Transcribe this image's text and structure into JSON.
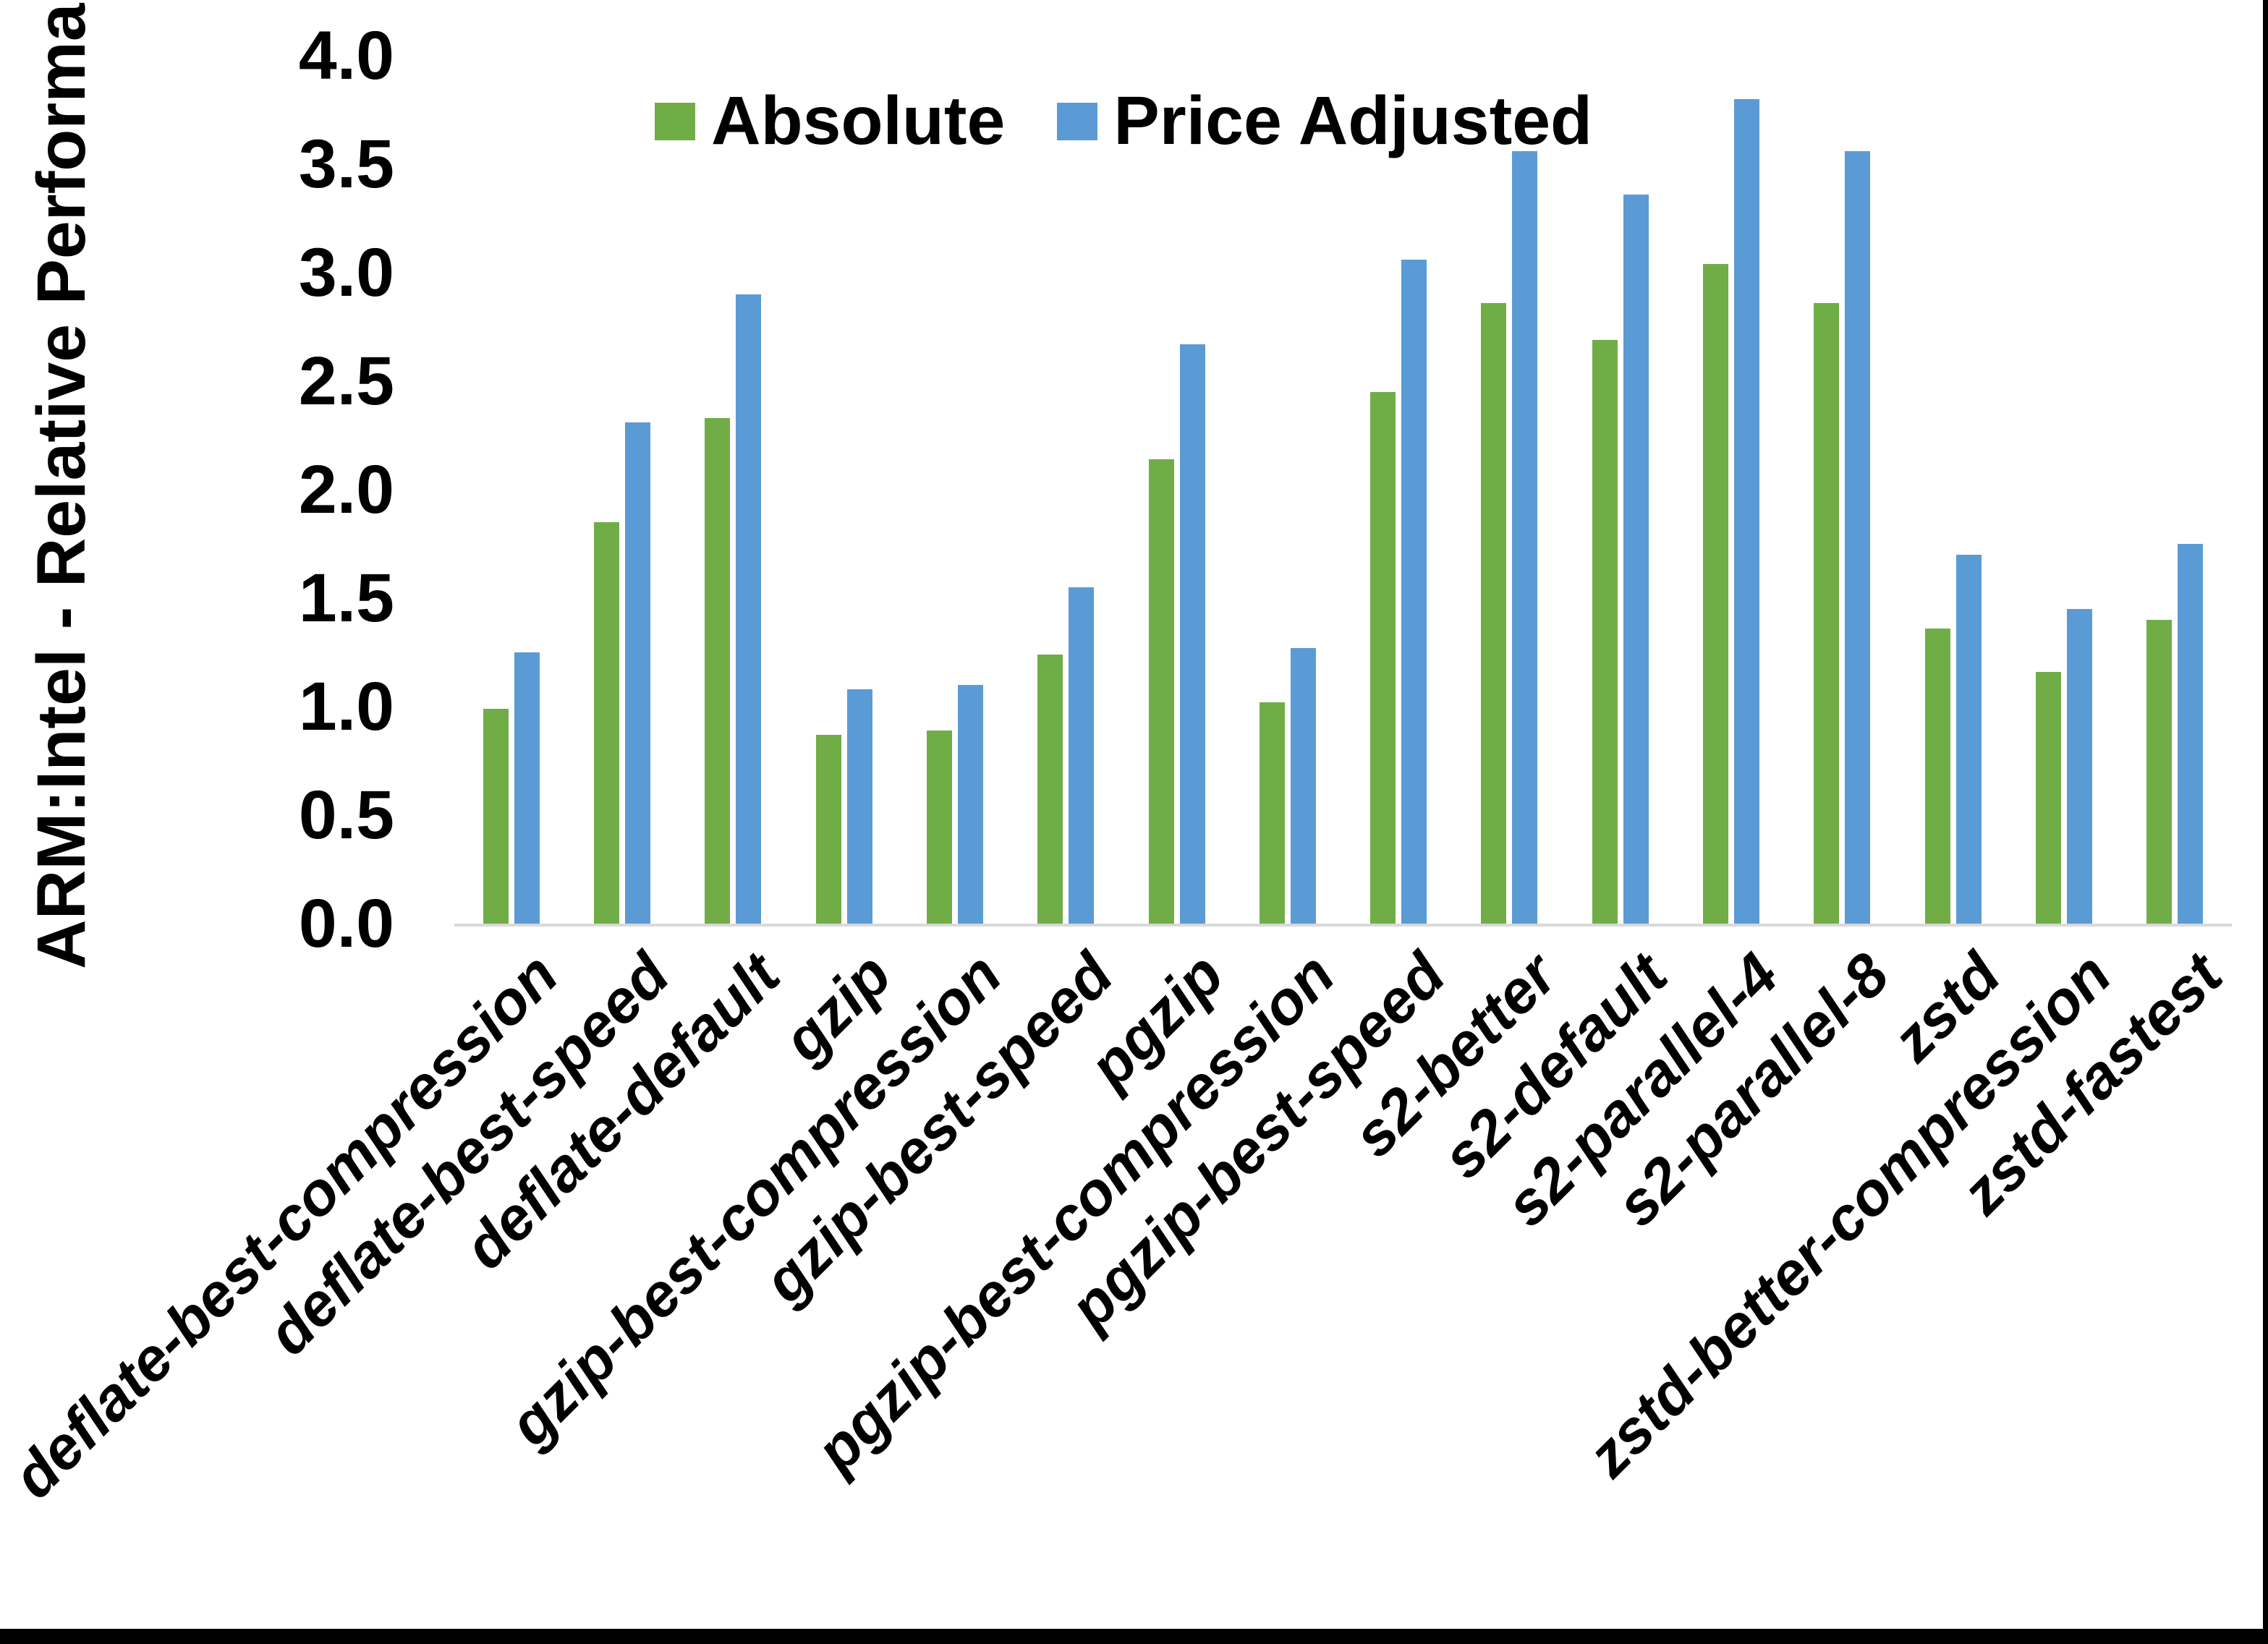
{
  "page": {
    "background": "#ffffff",
    "border_color": "#000000"
  },
  "chart_data": {
    "type": "bar",
    "title": "",
    "ylabel": "ARM:Intel - Relative Performance",
    "xlabel": "",
    "ylim": [
      0.0,
      4.0
    ],
    "ytick_step": 0.5,
    "ytick_labels": [
      "0.0",
      "0.5",
      "1.0",
      "1.5",
      "2.0",
      "2.5",
      "3.0",
      "3.5",
      "4.0"
    ],
    "grid": false,
    "legend_position": "top-center",
    "baseline_color": "#d9d9d9",
    "categories": [
      "deflate-best-compression",
      "deflate-best-speed",
      "deflate-default",
      "gzip",
      "gzip-best-compression",
      "gzip-best-speed",
      "pgzip",
      "pgzip-best-compression",
      "pgzip-best-speed",
      "s2-better",
      "s2-default",
      "s2-parallel-4",
      "s2-parallel-8",
      "zstd",
      "zstd-better-compression",
      "zstd-fastest"
    ],
    "series": [
      {
        "name": "Absolute",
        "color": "#70AD47",
        "values": [
          0.99,
          1.85,
          2.33,
          0.87,
          0.89,
          1.24,
          2.14,
          1.02,
          2.45,
          2.86,
          2.69,
          3.04,
          2.86,
          1.36,
          1.16,
          1.4
        ]
      },
      {
        "name": "Price Adjusted",
        "color": "#5B9BD5",
        "values": [
          1.25,
          2.31,
          2.9,
          1.08,
          1.1,
          1.55,
          2.67,
          1.27,
          3.06,
          3.56,
          3.36,
          3.8,
          3.56,
          1.7,
          1.45,
          1.75
        ]
      }
    ]
  }
}
